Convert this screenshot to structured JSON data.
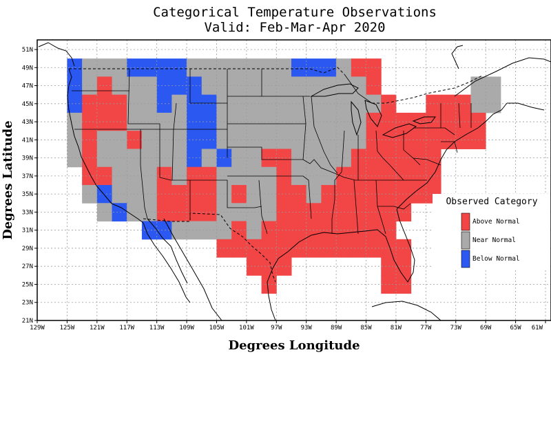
{
  "title_line1": "Categorical Temperature Observations",
  "title_line2": "Valid: Feb-Mar-Apr 2020",
  "x_axis_title": "Degrees Longitude",
  "y_axis_title": "Degrees Latitude",
  "x_ticks": [
    "129W",
    "125W",
    "121W",
    "117W",
    "113W",
    "109W",
    "105W",
    "101W",
    "97W",
    "93W",
    "89W",
    "85W",
    "81W",
    "77W",
    "73W",
    "69W",
    "65W",
    "61W"
  ],
  "y_ticks": [
    "51N",
    "49N",
    "47N",
    "45N",
    "43N",
    "41N",
    "39N",
    "37N",
    "35N",
    "33N",
    "31N",
    "29N",
    "27N",
    "25N",
    "23N",
    "21N"
  ],
  "legend": {
    "title": "Observed Category",
    "items": [
      {
        "label": "Above Normal",
        "color": "#f24545"
      },
      {
        "label": "Near Normal",
        "color": "#aaaaaa"
      },
      {
        "label": "Below Normal",
        "color": "#2b58f0"
      }
    ]
  },
  "colors": {
    "above": "#f24545",
    "near": "#aaaaaa",
    "below": "#2b58f0",
    "grid": "#9a9a9a"
  },
  "chart_data": {
    "type": "heatmap",
    "grid_cell_degrees": 2,
    "x_range_lon": [
      -129,
      -61
    ],
    "y_range_lat": [
      21,
      52
    ],
    "categories": [
      "A",
      "N",
      "B"
    ],
    "rows": [
      {
        "lat": 49,
        "cells": [
          [
            -124,
            "B"
          ],
          [
            -122,
            "N"
          ],
          [
            -120,
            "N"
          ],
          [
            -118,
            "N"
          ],
          [
            -116,
            "B"
          ],
          [
            -114,
            "B"
          ],
          [
            -112,
            "B"
          ],
          [
            -110,
            "B"
          ],
          [
            -108,
            "N"
          ],
          [
            -106,
            "N"
          ],
          [
            -104,
            "N"
          ],
          [
            -102,
            "N"
          ],
          [
            -100,
            "N"
          ],
          [
            -98,
            "N"
          ],
          [
            -96,
            "N"
          ],
          [
            -94,
            "B"
          ],
          [
            -92,
            "B"
          ],
          [
            -90,
            "B"
          ],
          [
            -88,
            "N"
          ],
          [
            -86,
            "A"
          ],
          [
            -84,
            "A"
          ]
        ]
      },
      {
        "lat": 47,
        "cells": [
          [
            -124,
            "B"
          ],
          [
            -122,
            "N"
          ],
          [
            -120,
            "A"
          ],
          [
            -118,
            "N"
          ],
          [
            -116,
            "N"
          ],
          [
            -114,
            "N"
          ],
          [
            -112,
            "B"
          ],
          [
            -110,
            "B"
          ],
          [
            -108,
            "B"
          ],
          [
            -106,
            "N"
          ],
          [
            -104,
            "N"
          ],
          [
            -102,
            "N"
          ],
          [
            -100,
            "N"
          ],
          [
            -98,
            "N"
          ],
          [
            -96,
            "N"
          ],
          [
            -94,
            "N"
          ],
          [
            -92,
            "N"
          ],
          [
            -90,
            "N"
          ],
          [
            -88,
            "N"
          ],
          [
            -86,
            "N"
          ],
          [
            -84,
            "A"
          ],
          [
            -70,
            "N"
          ],
          [
            -68,
            "N"
          ]
        ]
      },
      {
        "lat": 45,
        "cells": [
          [
            -124,
            "B"
          ],
          [
            -122,
            "A"
          ],
          [
            -120,
            "A"
          ],
          [
            -118,
            "A"
          ],
          [
            -116,
            "N"
          ],
          [
            -114,
            "N"
          ],
          [
            -112,
            "B"
          ],
          [
            -110,
            "N"
          ],
          [
            -108,
            "B"
          ],
          [
            -106,
            "B"
          ],
          [
            -104,
            "N"
          ],
          [
            -102,
            "N"
          ],
          [
            -100,
            "N"
          ],
          [
            -98,
            "N"
          ],
          [
            -96,
            "N"
          ],
          [
            -94,
            "N"
          ],
          [
            -92,
            "N"
          ],
          [
            -90,
            "N"
          ],
          [
            -88,
            "N"
          ],
          [
            -86,
            "N"
          ],
          [
            -84,
            "N"
          ],
          [
            -82,
            "A"
          ],
          [
            -76,
            "A"
          ],
          [
            -74,
            "A"
          ],
          [
            -72,
            "A"
          ],
          [
            -70,
            "N"
          ],
          [
            -68,
            "N"
          ]
        ]
      },
      {
        "lat": 43,
        "cells": [
          [
            -124,
            "N"
          ],
          [
            -122,
            "A"
          ],
          [
            -120,
            "A"
          ],
          [
            -118,
            "A"
          ],
          [
            -116,
            "N"
          ],
          [
            -114,
            "N"
          ],
          [
            -112,
            "N"
          ],
          [
            -110,
            "N"
          ],
          [
            -108,
            "B"
          ],
          [
            -106,
            "B"
          ],
          [
            -104,
            "N"
          ],
          [
            -102,
            "N"
          ],
          [
            -100,
            "N"
          ],
          [
            -98,
            "N"
          ],
          [
            -96,
            "N"
          ],
          [
            -94,
            "N"
          ],
          [
            -92,
            "N"
          ],
          [
            -90,
            "N"
          ],
          [
            -88,
            "N"
          ],
          [
            -86,
            "N"
          ],
          [
            -84,
            "A"
          ],
          [
            -82,
            "A"
          ],
          [
            -80,
            "A"
          ],
          [
            -78,
            "A"
          ],
          [
            -76,
            "A"
          ],
          [
            -74,
            "A"
          ],
          [
            -72,
            "A"
          ],
          [
            -70,
            "A"
          ]
        ]
      },
      {
        "lat": 41,
        "cells": [
          [
            -124,
            "N"
          ],
          [
            -122,
            "A"
          ],
          [
            -120,
            "N"
          ],
          [
            -118,
            "N"
          ],
          [
            -116,
            "A"
          ],
          [
            -114,
            "N"
          ],
          [
            -112,
            "N"
          ],
          [
            -110,
            "N"
          ],
          [
            -108,
            "B"
          ],
          [
            -106,
            "B"
          ],
          [
            -104,
            "N"
          ],
          [
            -102,
            "N"
          ],
          [
            -100,
            "N"
          ],
          [
            -98,
            "N"
          ],
          [
            -96,
            "N"
          ],
          [
            -94,
            "N"
          ],
          [
            -92,
            "N"
          ],
          [
            -90,
            "N"
          ],
          [
            -88,
            "N"
          ],
          [
            -86,
            "N"
          ],
          [
            -84,
            "A"
          ],
          [
            -82,
            "A"
          ],
          [
            -80,
            "A"
          ],
          [
            -78,
            "A"
          ],
          [
            -76,
            "A"
          ],
          [
            -74,
            "A"
          ],
          [
            -72,
            "A"
          ],
          [
            -70,
            "A"
          ]
        ]
      },
      {
        "lat": 39,
        "cells": [
          [
            -124,
            "N"
          ],
          [
            -122,
            "A"
          ],
          [
            -120,
            "N"
          ],
          [
            -118,
            "N"
          ],
          [
            -116,
            "N"
          ],
          [
            -114,
            "N"
          ],
          [
            -112,
            "N"
          ],
          [
            -110,
            "N"
          ],
          [
            -108,
            "B"
          ],
          [
            -106,
            "N"
          ],
          [
            -104,
            "B"
          ],
          [
            -102,
            "N"
          ],
          [
            -100,
            "N"
          ],
          [
            -98,
            "A"
          ],
          [
            -96,
            "A"
          ],
          [
            -94,
            "N"
          ],
          [
            -92,
            "N"
          ],
          [
            -90,
            "N"
          ],
          [
            -88,
            "N"
          ],
          [
            -86,
            "A"
          ],
          [
            -84,
            "A"
          ],
          [
            -82,
            "A"
          ],
          [
            -80,
            "A"
          ],
          [
            -78,
            "A"
          ],
          [
            -76,
            "A"
          ]
        ]
      },
      {
        "lat": 37,
        "cells": [
          [
            -122,
            "A"
          ],
          [
            -120,
            "A"
          ],
          [
            -118,
            "N"
          ],
          [
            -116,
            "N"
          ],
          [
            -114,
            "N"
          ],
          [
            -112,
            "A"
          ],
          [
            -110,
            "N"
          ],
          [
            -108,
            "A"
          ],
          [
            -106,
            "A"
          ],
          [
            -104,
            "N"
          ],
          [
            -102,
            "N"
          ],
          [
            -100,
            "N"
          ],
          [
            -98,
            "N"
          ],
          [
            -96,
            "A"
          ],
          [
            -94,
            "N"
          ],
          [
            -92,
            "N"
          ],
          [
            -90,
            "N"
          ],
          [
            -88,
            "A"
          ],
          [
            -86,
            "A"
          ],
          [
            -84,
            "A"
          ],
          [
            -82,
            "A"
          ],
          [
            -80,
            "A"
          ],
          [
            -78,
            "A"
          ],
          [
            -76,
            "A"
          ]
        ]
      },
      {
        "lat": 35,
        "cells": [
          [
            -122,
            "N"
          ],
          [
            -120,
            "B"
          ],
          [
            -118,
            "N"
          ],
          [
            -116,
            "N"
          ],
          [
            -114,
            "N"
          ],
          [
            -112,
            "A"
          ],
          [
            -110,
            "A"
          ],
          [
            -108,
            "A"
          ],
          [
            -106,
            "A"
          ],
          [
            -104,
            "N"
          ],
          [
            -102,
            "A"
          ],
          [
            -100,
            "N"
          ],
          [
            -98,
            "N"
          ],
          [
            -96,
            "A"
          ],
          [
            -94,
            "A"
          ],
          [
            -92,
            "N"
          ],
          [
            -90,
            "A"
          ],
          [
            -88,
            "A"
          ],
          [
            -86,
            "A"
          ],
          [
            -84,
            "A"
          ],
          [
            -82,
            "A"
          ],
          [
            -80,
            "A"
          ],
          [
            -78,
            "A"
          ],
          [
            -76,
            "A"
          ]
        ]
      },
      {
        "lat": 33,
        "cells": [
          [
            -120,
            "N"
          ],
          [
            -118,
            "B"
          ],
          [
            -116,
            "N"
          ],
          [
            -114,
            "N"
          ],
          [
            -112,
            "A"
          ],
          [
            -110,
            "A"
          ],
          [
            -108,
            "A"
          ],
          [
            -106,
            "A"
          ],
          [
            -104,
            "N"
          ],
          [
            -102,
            "N"
          ],
          [
            -100,
            "N"
          ],
          [
            -98,
            "N"
          ],
          [
            -96,
            "A"
          ],
          [
            -94,
            "A"
          ],
          [
            -92,
            "A"
          ],
          [
            -90,
            "A"
          ],
          [
            -88,
            "A"
          ],
          [
            -86,
            "A"
          ],
          [
            -84,
            "A"
          ],
          [
            -82,
            "A"
          ],
          [
            -80,
            "A"
          ]
        ]
      },
      {
        "lat": 31,
        "cells": [
          [
            -114,
            "B"
          ],
          [
            -112,
            "B"
          ],
          [
            -110,
            "N"
          ],
          [
            -108,
            "N"
          ],
          [
            -106,
            "N"
          ],
          [
            -104,
            "N"
          ],
          [
            -102,
            "A"
          ],
          [
            -100,
            "N"
          ],
          [
            -98,
            "A"
          ],
          [
            -96,
            "A"
          ],
          [
            -94,
            "A"
          ],
          [
            -92,
            "A"
          ],
          [
            -90,
            "A"
          ],
          [
            -88,
            "A"
          ],
          [
            -86,
            "A"
          ],
          [
            -84,
            "A"
          ],
          [
            -82,
            "A"
          ]
        ]
      },
      {
        "lat": 29,
        "cells": [
          [
            -104,
            "A"
          ],
          [
            -102,
            "A"
          ],
          [
            -100,
            "A"
          ],
          [
            -98,
            "A"
          ],
          [
            -96,
            "A"
          ],
          [
            -94,
            "A"
          ],
          [
            -92,
            "A"
          ],
          [
            -90,
            "A"
          ],
          [
            -88,
            "A"
          ],
          [
            -86,
            "A"
          ],
          [
            -84,
            "A"
          ],
          [
            -82,
            "A"
          ],
          [
            -80,
            "A"
          ]
        ]
      },
      {
        "lat": 27,
        "cells": [
          [
            -100,
            "A"
          ],
          [
            -98,
            "A"
          ],
          [
            -96,
            "A"
          ],
          [
            -82,
            "A"
          ],
          [
            -80,
            "A"
          ]
        ]
      },
      {
        "lat": 25,
        "cells": [
          [
            -98,
            "A"
          ],
          [
            -82,
            "A"
          ],
          [
            -80,
            "A"
          ]
        ]
      }
    ]
  }
}
